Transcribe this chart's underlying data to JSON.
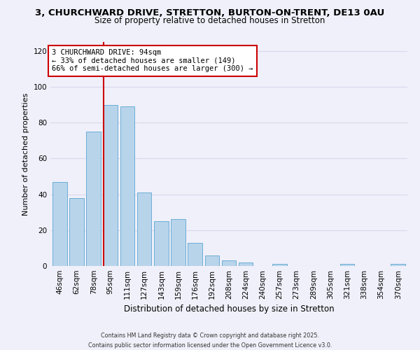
{
  "title_line1": "3, CHURCHWARD DRIVE, STRETTON, BURTON-ON-TRENT, DE13 0AU",
  "title_line2": "Size of property relative to detached houses in Stretton",
  "xlabel": "Distribution of detached houses by size in Stretton",
  "ylabel": "Number of detached properties",
  "bar_labels": [
    "46sqm",
    "62sqm",
    "78sqm",
    "95sqm",
    "111sqm",
    "127sqm",
    "143sqm",
    "159sqm",
    "176sqm",
    "192sqm",
    "208sqm",
    "224sqm",
    "240sqm",
    "257sqm",
    "273sqm",
    "289sqm",
    "305sqm",
    "321sqm",
    "338sqm",
    "354sqm",
    "370sqm"
  ],
  "bar_values": [
    47,
    38,
    75,
    90,
    89,
    41,
    25,
    26,
    13,
    6,
    3,
    2,
    0,
    1,
    0,
    0,
    0,
    1,
    0,
    0,
    1
  ],
  "bar_color": "#b8d4eb",
  "bar_edge_color": "#6aaed6",
  "property_line_label": "95sqm",
  "property_line_color": "#cc0000",
  "annotation_text": "3 CHURCHWARD DRIVE: 94sqm\n← 33% of detached houses are smaller (149)\n66% of semi-detached houses are larger (300) →",
  "annotation_box_color": "#ffffff",
  "annotation_box_edge_color": "#cc0000",
  "ylim": [
    0,
    125
  ],
  "yticks": [
    0,
    20,
    40,
    60,
    80,
    100,
    120
  ],
  "footer_line1": "Contains HM Land Registry data © Crown copyright and database right 2025.",
  "footer_line2": "Contains public sector information licensed under the Open Government Licence v3.0.",
  "background_color": "#f0f0fa",
  "grid_color": "#d8d8ee",
  "title1_fontsize": 9.5,
  "title2_fontsize": 8.5,
  "xlabel_fontsize": 8.5,
  "ylabel_fontsize": 8.0,
  "tick_fontsize": 7.5,
  "annot_fontsize": 7.5,
  "footer_fontsize": 5.8
}
